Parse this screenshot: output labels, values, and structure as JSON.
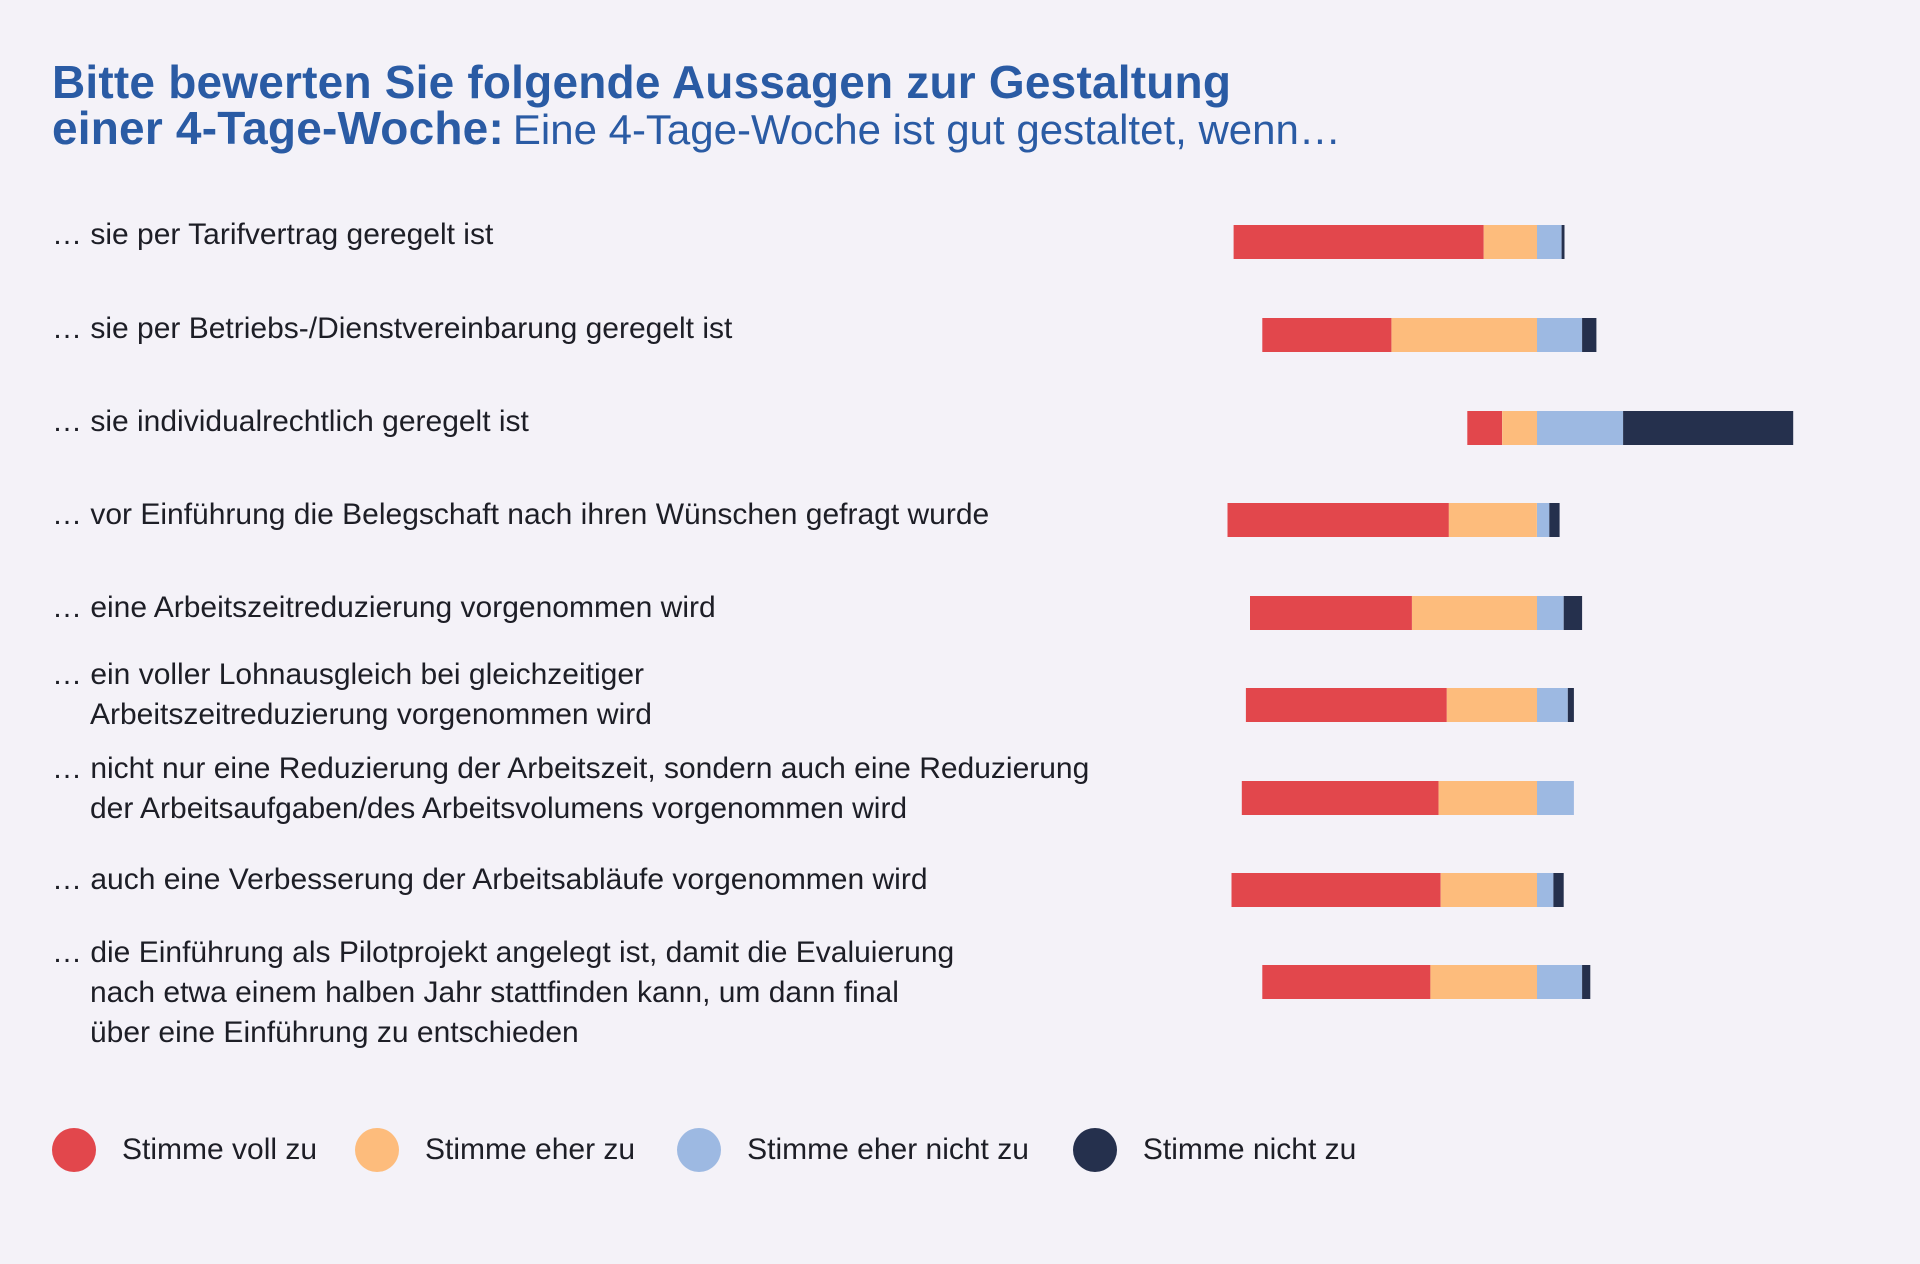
{
  "chart_data": {
    "type": "bar",
    "stacked": true,
    "diverging": true,
    "title_bold": "Bitte bewerten Sie folgende Aussagen zur Gestaltung einer 4-Tage-Woche:",
    "title_bold_line1": "Bitte bewerten Sie folgende Aussagen zur Gestaltung",
    "title_bold_line2": "einer 4-Tage-Woche:",
    "title_rest": "Eine 4-Tage-Woche ist gut gestaltet, wenn…",
    "categories": [
      [
        "… sie per Tarifvertrag geregelt ist"
      ],
      [
        "… sie per Betriebs-/Dienstvereinbarung geregelt ist"
      ],
      [
        "… sie individualrechtlich geregelt ist"
      ],
      [
        "… vor Einführung die Belegschaft nach ihren Wünschen gefragt wurde"
      ],
      [
        "… eine Arbeitszeitreduzierung vorgenommen wird"
      ],
      [
        "… ein voller Lohnausgleich bei gleichzeitiger",
        "Arbeitszeitreduzierung vorgenommen wird"
      ],
      [
        "… nicht nur eine Reduzierung der Arbeitszeit, sondern auch eine Reduzierung",
        "der Arbeitsaufgaben/des Arbeitsvolumens vorgenommen wird"
      ],
      [
        "… auch eine Verbesserung der Arbeitsabläufe vorgenommen wird"
      ],
      [
        "… die Einführung als Pilotprojekt angelegt ist, damit die Evaluierung",
        "nach etwa einem halben Jahr stattfinden kann, um dann final",
        "über eine Einführung zu entschieden"
      ]
    ],
    "series": [
      {
        "name": "Stimme voll zu",
        "color": "#e2474c",
        "values": [
          61,
          31.5,
          8.5,
          54,
          39.5,
          49,
          48,
          51,
          41
        ]
      },
      {
        "name": "Stimme eher zu",
        "color": "#fdbc7c",
        "values": [
          13,
          35.5,
          8.5,
          21.5,
          30.5,
          22,
          24,
          23.5,
          26
        ]
      },
      {
        "name": "Stimme eher nicht zu",
        "color": "#9db9e2",
        "values": [
          6,
          11,
          21,
          3,
          6.5,
          7.5,
          9,
          4,
          11
        ]
      },
      {
        "name": "Stimme nicht zu",
        "color": "#25304d",
        "values": [
          0.7,
          3.5,
          41.5,
          2.5,
          4.5,
          1.5,
          0,
          2.5,
          2
        ]
      }
    ],
    "xlim": [
      -80,
      80
    ],
    "grid": false,
    "legend_position": "bottom-left"
  }
}
